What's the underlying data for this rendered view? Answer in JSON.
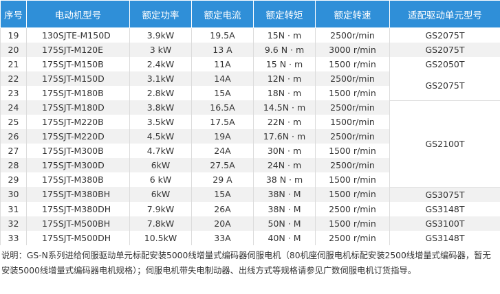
{
  "table": {
    "header": [
      "序号",
      "电动机型号",
      "额定功率",
      "额定电流",
      "额定转矩",
      "额定转速",
      "适配驱动单元型号"
    ],
    "rows": [
      [
        "19",
        "130SJTE-M150D",
        "3.9kW",
        "19.5A",
        "15N · m",
        "2500r/min",
        "GS2075T"
      ],
      [
        "20",
        "175SJT-M120E",
        "3 kW",
        "13 A",
        "9.6 N · m",
        "3000 r/min",
        "GS2075T"
      ],
      [
        "21",
        "175SJT-M150B",
        "2.4kW",
        "11A",
        "15 N · m",
        "1500 r/min",
        "GS2050T"
      ],
      [
        "22",
        "175SJT-M150D",
        "3.1kW",
        "14A",
        "12N · m",
        "2500r/min",
        "GS2075T"
      ],
      [
        "23",
        "175SJT-M180B",
        "2.8kW",
        "15A",
        "18N · m",
        "1500 r/min"
      ],
      [
        "24",
        "175SJT-M180D",
        "3.8kW",
        "16.5A",
        "14.5N · m",
        "2500r/min",
        "GS2100T"
      ],
      [
        "25",
        "175SJT-M220B",
        "3.5kW",
        "17.5A",
        "22N · m",
        "1500r/min"
      ],
      [
        "26",
        "175SJT-M220D",
        "4.5kW",
        "19A",
        "17.6N · m",
        "2500r/min"
      ],
      [
        "27",
        "175SJT-M300B",
        "4.7kW",
        "24A",
        "30N · m",
        "1500 r/min"
      ],
      [
        "28",
        "175SJT-M300D",
        "6kW",
        "27.5A",
        "24N · m",
        "2500r/min"
      ],
      [
        "29",
        "175SJT-M380B",
        "6 kW",
        "29 A",
        "38 N · m",
        "1500 r/min"
      ],
      [
        "30",
        "175SJT-M380BH",
        "6kW",
        "15A",
        "38N · M",
        "1500 r/min",
        "GS3075T"
      ],
      [
        "31",
        "175SJT-M380DH",
        "7.9kW",
        "26A",
        "38N · M",
        "2500 r/min",
        "GS3148T"
      ],
      [
        "32",
        "175SJT-M500BH",
        "7.8kW",
        "20A",
        "50N · M",
        "1500 r/min",
        "GS3100T"
      ],
      [
        "33",
        "175SJT-M500DH",
        "10.5kW",
        "33A",
        "40N · M",
        "2500 r/min",
        "GS3148T"
      ]
    ]
  },
  "note": "说明：GS-N系列进给伺服驱动单元标配安装5000线增量式编码器伺服电机（80机座伺服电机标配安装2500线增量式编码器，暂无安装5000线增量式编码器电机规格）；伺服电机带失电制动器、出线方式等规格请参见广数伺服电机订货指导。"
}
